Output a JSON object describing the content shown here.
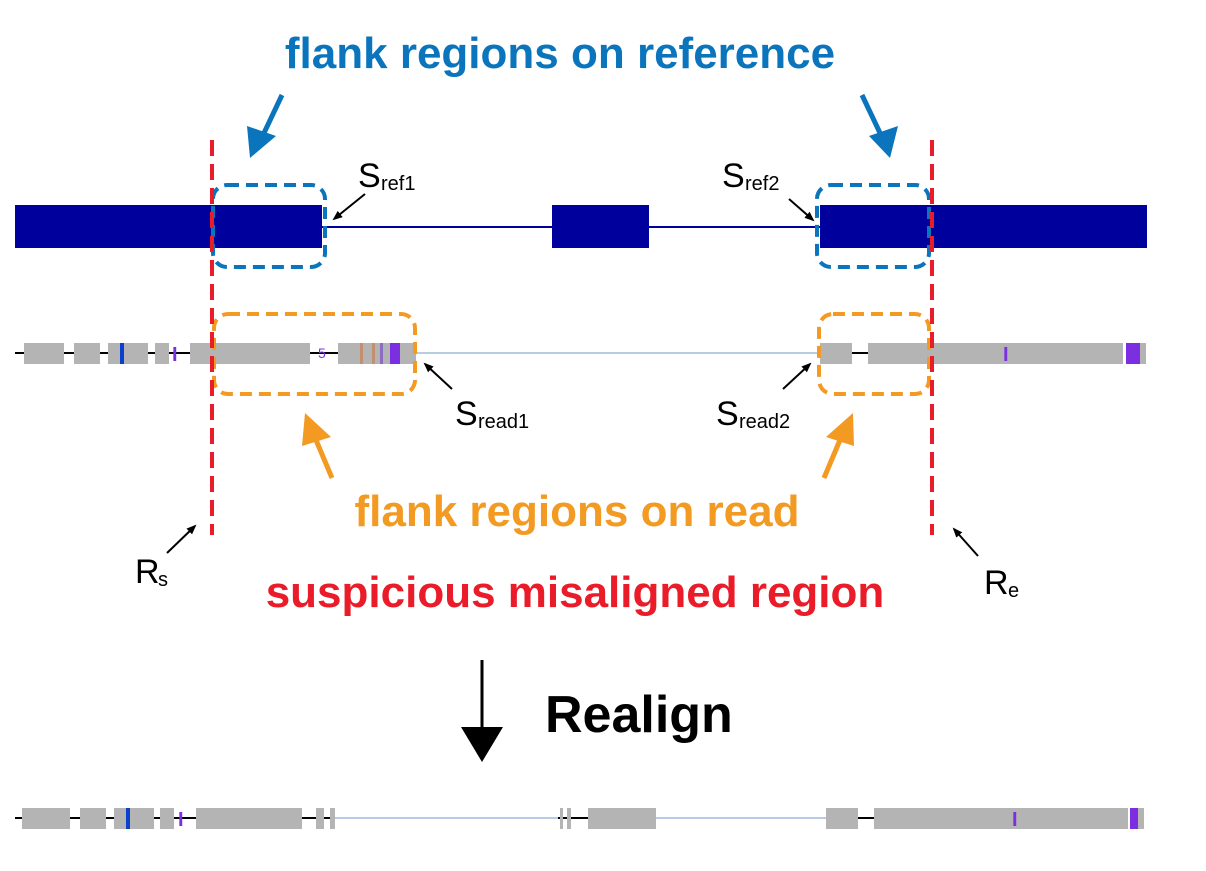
{
  "colors": {
    "reference": "#00009c",
    "read_gray": "#b4b4b4",
    "intron_line": "#b8cce4",
    "blue_accent": "#0a75bd",
    "orange_accent": "#f39a22",
    "red_accent": "#ea1c2a",
    "insertion_purple": "#7b2fe0"
  },
  "labels": {
    "ref_flank_title": "flank regions on reference",
    "read_flank_title": "flank regions on read",
    "suspicious_title": "suspicious misaligned region",
    "realign_label": "Realign",
    "sref1_main": "S",
    "sref1_sub": "ref1",
    "sref2_main": "S",
    "sref2_sub": "ref2",
    "sread1_main": "S",
    "sread1_sub": "read1",
    "sread2_main": "S",
    "sread2_sub": "read2",
    "rs_main": "R",
    "rs_sub": "s",
    "re_main": "R",
    "re_sub": "e",
    "read_marker": "5"
  }
}
